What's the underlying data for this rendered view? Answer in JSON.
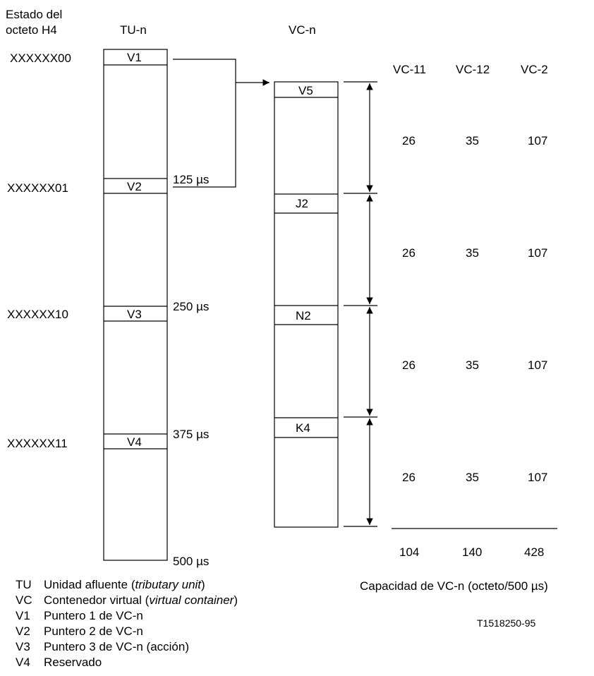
{
  "headers": {
    "h4_state": [
      "Estado del",
      "octeto H4"
    ],
    "tu": "TU-n",
    "vc": "VC-n",
    "vc_types": [
      "VC-11",
      "VC-12",
      "VC-2"
    ]
  },
  "h4_states": [
    "XXXXXX00",
    "XXXXXX01",
    "XXXXXX10",
    "XXXXXX11"
  ],
  "tu_bytes": [
    "V1",
    "V2",
    "V3",
    "V4"
  ],
  "time_marks": [
    "125 µs",
    "250 µs",
    "375 µs",
    "500 µs"
  ],
  "vc_bytes": [
    "V5",
    "J2",
    "N2",
    "K4"
  ],
  "capacities": [
    [
      "26",
      "35",
      "107"
    ],
    [
      "26",
      "35",
      "107"
    ],
    [
      "26",
      "35",
      "107"
    ],
    [
      "26",
      "35",
      "107"
    ]
  ],
  "totals": [
    "104",
    "140",
    "428"
  ],
  "capacity_caption": "Capacidad de VC-n (octeto/500 µs)",
  "figure_id": "T1518250-95",
  "legend": [
    {
      "abbr": "TU",
      "desc": "Unidad afluente (",
      "italic": "tributary unit",
      "tail": ")"
    },
    {
      "abbr": "VC",
      "desc": "Contenedor virtual (",
      "italic": "virtual container",
      "tail": ")"
    },
    {
      "abbr": "V1",
      "desc": "Puntero 1 de VC-n",
      "italic": "",
      "tail": ""
    },
    {
      "abbr": "V2",
      "desc": "Puntero 2 de VC-n",
      "italic": "",
      "tail": ""
    },
    {
      "abbr": "V3",
      "desc": "Puntero 3 de VC-n (acción)",
      "italic": "",
      "tail": ""
    },
    {
      "abbr": "V4",
      "desc": "Reservado",
      "italic": "",
      "tail": ""
    }
  ]
}
